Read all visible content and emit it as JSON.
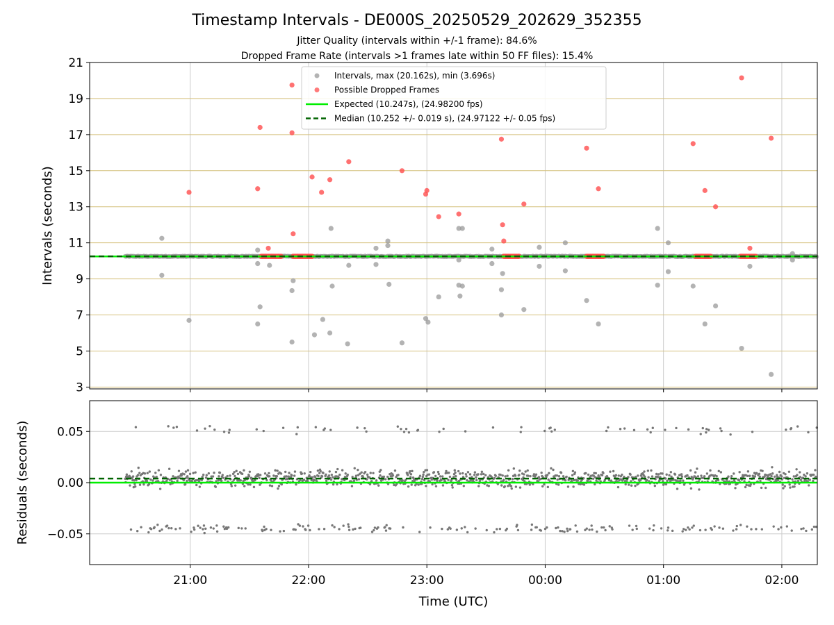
{
  "chart_data": [
    {
      "type": "scatter",
      "title": "Timestamp Intervals - DE000S_20250529_202629_352355",
      "subtitle_lines": [
        "Jitter Quality (intervals within +/-1 frame): 84.6%",
        "Dropped Frame Rate (intervals >1 frames late within 50 FF files): 15.4%"
      ],
      "ylabel": "Intervals (seconds)",
      "ylim": [
        2.9,
        21
      ],
      "xlim_hours": [
        20.15,
        26.3
      ],
      "yticks": [
        3,
        5,
        7,
        9,
        11,
        13,
        15,
        17,
        19,
        21
      ],
      "ytick_labels": [
        "3",
        "5",
        "7",
        "9",
        "11",
        "13",
        "15",
        "17",
        "19",
        "21"
      ],
      "grid": "horizontal gold lines at y ticks, vertical grey lines at x ticks",
      "legend_placement": "upper center",
      "legend": [
        "Intervals, max (20.162s), min (3.696s)",
        "Possible Dropped Frames",
        "Expected (10.247s), (24.98200 fps)",
        "Median (10.252 +/- 0.019 s), (24.97122 +/- 0.05 fps)"
      ],
      "expected_interval": 10.247,
      "median_interval": 10.252,
      "main_band": {
        "x_start": 20.45,
        "x_end": 26.3,
        "y": 10.25
      },
      "dropped_clusters": [
        {
          "x_start": 21.6,
          "x_end": 21.77,
          "y": 10.25
        },
        {
          "x_start": 21.87,
          "x_end": 22.03,
          "y": 10.25
        },
        {
          "x_start": 23.65,
          "x_end": 23.78,
          "y": 10.25
        },
        {
          "x_start": 24.35,
          "x_end": 24.5,
          "y": 10.25
        },
        {
          "x_start": 25.27,
          "x_end": 25.4,
          "y": 10.25
        },
        {
          "x_start": 25.65,
          "x_end": 25.78,
          "y": 10.25
        }
      ],
      "series": [
        {
          "name": "Possible Dropped Frames",
          "color": "#ff4d4d",
          "points": [
            [
              20.99,
              13.8
            ],
            [
              21.57,
              14.0
            ],
            [
              21.59,
              17.4
            ],
            [
              21.66,
              10.7
            ],
            [
              21.86,
              19.75
            ],
            [
              21.86,
              17.1
            ],
            [
              21.87,
              11.5
            ],
            [
              22.03,
              14.65
            ],
            [
              22.11,
              13.8
            ],
            [
              22.18,
              14.5
            ],
            [
              22.34,
              15.5
            ],
            [
              22.79,
              15.0
            ],
            [
              22.99,
              13.7
            ],
            [
              23.0,
              13.9
            ],
            [
              23.1,
              12.45
            ],
            [
              23.27,
              12.6
            ],
            [
              23.63,
              16.75
            ],
            [
              23.64,
              12.0
            ],
            [
              23.65,
              11.1
            ],
            [
              23.82,
              13.15
            ],
            [
              24.35,
              16.25
            ],
            [
              24.45,
              14.0
            ],
            [
              25.25,
              16.5
            ],
            [
              25.35,
              13.9
            ],
            [
              25.44,
              13.0
            ],
            [
              25.66,
              20.15
            ],
            [
              25.73,
              10.7
            ],
            [
              25.91,
              16.8
            ]
          ]
        },
        {
          "name": "Intervals, max (20.162s), min (3.696s)",
          "color": "#999999",
          "points": [
            [
              20.76,
              11.25
            ],
            [
              20.76,
              9.2
            ],
            [
              20.99,
              6.7
            ],
            [
              21.57,
              10.6
            ],
            [
              21.57,
              9.85
            ],
            [
              21.57,
              6.5
            ],
            [
              21.59,
              7.45
            ],
            [
              21.67,
              9.75
            ],
            [
              21.86,
              8.35
            ],
            [
              21.87,
              8.9
            ],
            [
              21.86,
              5.5
            ],
            [
              22.05,
              5.9
            ],
            [
              22.12,
              6.75
            ],
            [
              22.19,
              11.8
            ],
            [
              22.2,
              8.6
            ],
            [
              22.18,
              6.0
            ],
            [
              22.34,
              9.75
            ],
            [
              22.33,
              5.4
            ],
            [
              22.57,
              10.7
            ],
            [
              22.57,
              9.8
            ],
            [
              22.67,
              11.1
            ],
            [
              22.67,
              10.85
            ],
            [
              22.68,
              8.7
            ],
            [
              22.79,
              5.45
            ],
            [
              22.99,
              6.8
            ],
            [
              23.01,
              6.6
            ],
            [
              23.1,
              8.0
            ],
            [
              23.27,
              11.8
            ],
            [
              23.3,
              11.8
            ],
            [
              23.27,
              10.05
            ],
            [
              23.27,
              8.65
            ],
            [
              23.3,
              8.6
            ],
            [
              23.28,
              8.05
            ],
            [
              23.55,
              10.65
            ],
            [
              23.55,
              9.85
            ],
            [
              23.63,
              8.4
            ],
            [
              23.64,
              9.3
            ],
            [
              23.63,
              7.0
            ],
            [
              23.82,
              7.3
            ],
            [
              23.95,
              10.75
            ],
            [
              23.95,
              9.7
            ],
            [
              24.17,
              11.0
            ],
            [
              24.17,
              9.45
            ],
            [
              24.35,
              7.8
            ],
            [
              24.45,
              6.5
            ],
            [
              24.95,
              11.8
            ],
            [
              24.95,
              8.65
            ],
            [
              25.04,
              11.0
            ],
            [
              25.04,
              9.4
            ],
            [
              25.25,
              8.6
            ],
            [
              25.35,
              6.5
            ],
            [
              25.44,
              7.5
            ],
            [
              25.66,
              5.15
            ],
            [
              25.73,
              9.7
            ],
            [
              25.91,
              3.7
            ],
            [
              26.09,
              10.4
            ],
            [
              26.09,
              10.05
            ]
          ]
        }
      ]
    },
    {
      "type": "scatter",
      "ylabel": "Residuals (seconds)",
      "xlabel": "Time (UTC)",
      "ylim": [
        -0.08,
        0.08
      ],
      "xlim_hours": [
        20.15,
        26.3
      ],
      "yticks": [
        0.05,
        0.0,
        -0.05
      ],
      "ytick_labels": [
        "0.05",
        "0.00",
        "−0.05"
      ],
      "xticks": [
        21,
        22,
        23,
        24,
        25,
        26
      ],
      "xtick_labels": [
        "21:00",
        "22:00",
        "23:00",
        "00:00",
        "01:00",
        "02:00"
      ],
      "expected_residual": 0.0,
      "median_residual": 0.004,
      "residual_clusters": {
        "x_range": [
          20.45,
          26.3
        ],
        "core": {
          "center": 0.004,
          "spread": 0.012
        },
        "upper": {
          "center": 0.051,
          "spread": 0.006
        },
        "lower": {
          "center": -0.045,
          "spread": 0.006
        }
      },
      "series": [
        {
          "name": "Residuals",
          "color": "#777777"
        }
      ]
    }
  ],
  "colors": {
    "expected_line": "#00ee00",
    "median_line": "#006400",
    "grid_gold": "#d4bf7a",
    "grid_grey": "#cccccc",
    "interval_point": "#999999",
    "dropped_point": "#ff4d4d",
    "residual_point": "#777777"
  }
}
